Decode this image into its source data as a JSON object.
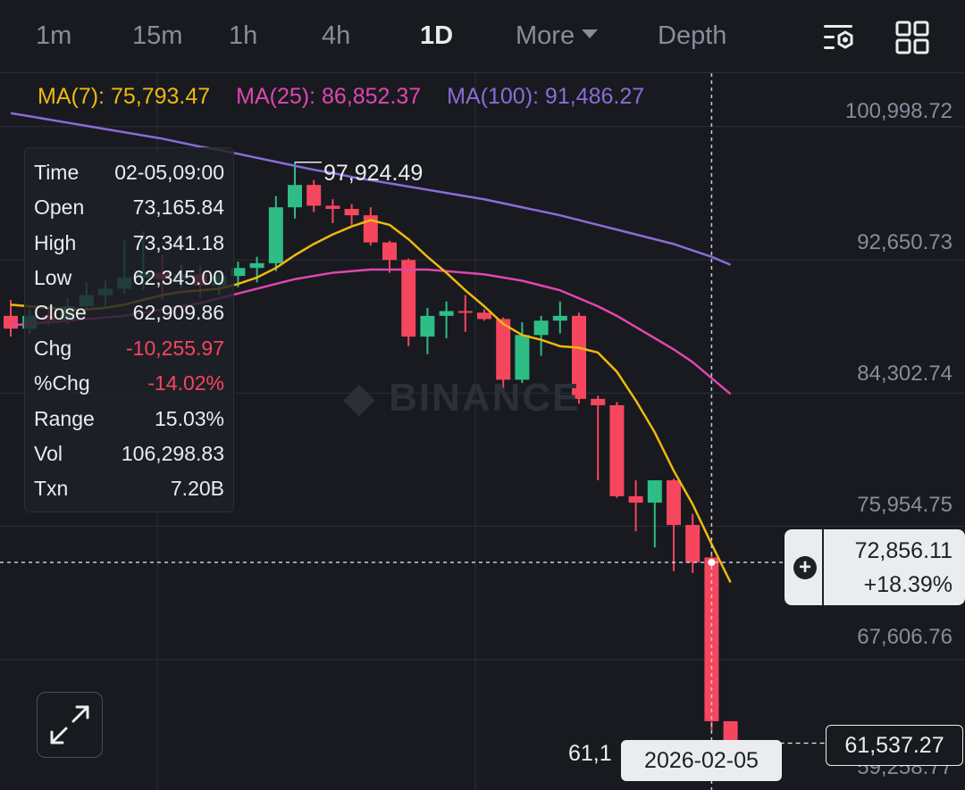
{
  "toolbar": {
    "intervals": [
      "1m",
      "15m",
      "1h",
      "4h",
      "1D"
    ],
    "active_interval": "1D",
    "more_label": "More",
    "depth_label": "Depth",
    "icons": [
      "chart-settings-icon",
      "layout-grid-icon"
    ]
  },
  "ma": {
    "ma7": "MA(7): 75,793.47",
    "ma25": "MA(25): 86,852.37",
    "ma100": "MA(100): 91,486.27",
    "colors": {
      "ma7": "#f0b90b",
      "ma25": "#e046b0",
      "ma100": "#8b6cd6"
    }
  },
  "info": {
    "time_label": "Time",
    "time": "02-05,09:00",
    "open_label": "Open",
    "open": "73,165.84",
    "high_label": "High",
    "high": "73,341.18",
    "low_label": "Low",
    "low": "62,345.00",
    "close_label": "Close",
    "close": "62,909.86",
    "chg_label": "Chg",
    "chg": "-10,255.97",
    "pchg_label": "%Chg",
    "pchg": "-14.02%",
    "range_label": "Range",
    "range": "15.03%",
    "vol_label": "Vol",
    "vol": "106,298.83",
    "txn_label": "Txn",
    "txn": "7.20B"
  },
  "cursor": {
    "price": "72,856.11",
    "change": "+18.39%",
    "date": "2026-02-05"
  },
  "last_price": "61,537.27",
  "high_marker": "97,924.49",
  "low_marker": "61,1",
  "watermark": "BINANCE",
  "colors": {
    "up": "#2ebd85",
    "down": "#f6465d",
    "background": "#181a20",
    "grid": "#2b2f36"
  },
  "chart_data": {
    "type": "candlestick",
    "y_tick_labels": [
      "100,998.72",
      "92,650.73",
      "84,302.74",
      "75,954.75",
      "67,606.76",
      "59,258.77"
    ],
    "y_ticks": [
      100998.72,
      92650.73,
      84302.74,
      75954.75,
      67606.76,
      59258.77
    ],
    "ylim": [
      58600,
      103500
    ],
    "candles": [
      {
        "o": 88300,
        "h": 89300,
        "l": 87000,
        "c": 87500
      },
      {
        "o": 87500,
        "h": 88700,
        "l": 87200,
        "c": 88300
      },
      {
        "o": 88300,
        "h": 88900,
        "l": 87700,
        "c": 88000
      },
      {
        "o": 88000,
        "h": 89400,
        "l": 87800,
        "c": 88900
      },
      {
        "o": 88900,
        "h": 90400,
        "l": 88700,
        "c": 89600
      },
      {
        "o": 89600,
        "h": 90500,
        "l": 88900,
        "c": 90000
      },
      {
        "o": 90000,
        "h": 93000,
        "l": 89700,
        "c": 90700
      },
      {
        "o": 90700,
        "h": 93600,
        "l": 89900,
        "c": 91000
      },
      {
        "o": 91000,
        "h": 92100,
        "l": 89300,
        "c": 90600
      },
      {
        "o": 90600,
        "h": 91500,
        "l": 90000,
        "c": 90900
      },
      {
        "o": 90900,
        "h": 91500,
        "l": 89400,
        "c": 90200
      },
      {
        "o": 90200,
        "h": 91000,
        "l": 89600,
        "c": 90800
      },
      {
        "o": 90800,
        "h": 91700,
        "l": 90100,
        "c": 91300
      },
      {
        "o": 91300,
        "h": 92000,
        "l": 90400,
        "c": 91600
      },
      {
        "o": 91600,
        "h": 95800,
        "l": 91100,
        "c": 95100
      },
      {
        "o": 95100,
        "h": 97924,
        "l": 94400,
        "c": 96500
      },
      {
        "o": 96500,
        "h": 96800,
        "l": 94800,
        "c": 95200
      },
      {
        "o": 95200,
        "h": 95600,
        "l": 94100,
        "c": 95000
      },
      {
        "o": 95000,
        "h": 95300,
        "l": 94000,
        "c": 94600
      },
      {
        "o": 94600,
        "h": 95100,
        "l": 92700,
        "c": 92900
      },
      {
        "o": 92900,
        "h": 93000,
        "l": 91000,
        "c": 91800
      },
      {
        "o": 91800,
        "h": 91900,
        "l": 86400,
        "c": 87000
      },
      {
        "o": 87000,
        "h": 88800,
        "l": 85900,
        "c": 88300
      },
      {
        "o": 88300,
        "h": 89200,
        "l": 86900,
        "c": 88600
      },
      {
        "o": 88600,
        "h": 89600,
        "l": 87300,
        "c": 88500
      },
      {
        "o": 88500,
        "h": 88700,
        "l": 88000,
        "c": 88100
      },
      {
        "o": 88100,
        "h": 88200,
        "l": 83700,
        "c": 84300
      },
      {
        "o": 84300,
        "h": 87900,
        "l": 84100,
        "c": 87100
      },
      {
        "o": 87100,
        "h": 88300,
        "l": 85800,
        "c": 88000
      },
      {
        "o": 88000,
        "h": 89200,
        "l": 87200,
        "c": 88300
      },
      {
        "o": 88300,
        "h": 88500,
        "l": 82800,
        "c": 83100
      },
      {
        "o": 83100,
        "h": 83300,
        "l": 78000,
        "c": 82700
      },
      {
        "o": 82700,
        "h": 82900,
        "l": 76900,
        "c": 77000
      },
      {
        "o": 77000,
        "h": 78000,
        "l": 74800,
        "c": 76600
      },
      {
        "o": 76600,
        "h": 78000,
        "l": 73800,
        "c": 78000
      },
      {
        "o": 78000,
        "h": 78100,
        "l": 72300,
        "c": 75200
      },
      {
        "o": 75200,
        "h": 75900,
        "l": 72200,
        "c": 72856
      },
      {
        "o": 73166,
        "h": 73341,
        "l": 62345,
        "c": 62910
      },
      {
        "o": 62910,
        "h": 62900,
        "l": 61537,
        "c": 61537
      }
    ],
    "ma7": [
      89000,
      88900,
      88800,
      88700,
      88700,
      88800,
      89000,
      89300,
      89600,
      89800,
      89900,
      90000,
      90300,
      90700,
      91300,
      92100,
      92800,
      93400,
      93900,
      94300,
      94000,
      93100,
      92000,
      91000,
      89900,
      88900,
      87800,
      87100,
      86800,
      86400,
      86300,
      86000,
      84800,
      83000,
      81000,
      78600,
      76500,
      74000,
      71600
    ],
    "ma25": [
      87700,
      87800,
      87900,
      88000,
      88100,
      88200,
      88300,
      88500,
      88700,
      88900,
      89100,
      89400,
      89700,
      90000,
      90300,
      90600,
      90800,
      91000,
      91100,
      91200,
      91200,
      91200,
      91200,
      91100,
      91000,
      90900,
      90700,
      90500,
      90200,
      89900,
      89400,
      88900,
      88300,
      87600,
      86900,
      86200,
      85400,
      84400,
      83400
    ],
    "ma100": [
      101000,
      100800,
      100600,
      100400,
      100200,
      100000,
      99800,
      99600,
      99400,
      99150,
      98900,
      98700,
      98450,
      98200,
      97950,
      97700,
      97450,
      97250,
      97000,
      96800,
      96600,
      96400,
      96200,
      96000,
      95800,
      95600,
      95350,
      95100,
      94850,
      94600,
      94300,
      94000,
      93700,
      93400,
      93100,
      92800,
      92400,
      92000,
      91500
    ]
  }
}
